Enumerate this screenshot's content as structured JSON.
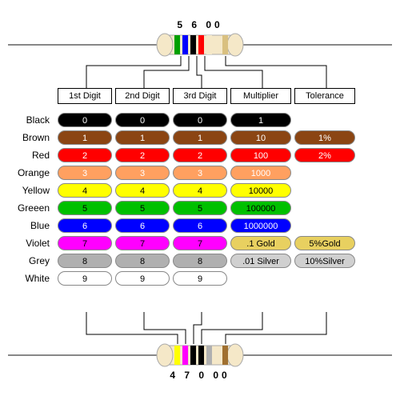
{
  "top_resistor": {
    "digits_label": "5 6 00",
    "bands": [
      "#00a000",
      "#0000ff",
      "#000000",
      "#ff0000",
      "#f5e8c8",
      "#d9c080"
    ]
  },
  "bottom_resistor": {
    "digits_label": "4 7 0 00",
    "bands": [
      "#ffff00",
      "#ff00ff",
      "#000000",
      "#000000",
      "#b0b0b0",
      "#a07030"
    ]
  },
  "headers": [
    "1st Digit",
    "2nd Digit",
    "3rd Digit",
    "Multiplier",
    "Tolerance"
  ],
  "rows": [
    {
      "label": "Black",
      "color": "#000000",
      "text": "#ffffff",
      "d": "0",
      "mult": "1",
      "tol": null
    },
    {
      "label": "Brown",
      "color": "#8b4513",
      "text": "#ffffff",
      "d": "1",
      "mult": "10",
      "tol": "1%"
    },
    {
      "label": "Red",
      "color": "#ff0000",
      "text": "#ffffff",
      "d": "2",
      "mult": "100",
      "tol": "2%"
    },
    {
      "label": "Orange",
      "color": "#ffa060",
      "text": "#ffffff",
      "d": "3",
      "mult": "1000",
      "tol": null
    },
    {
      "label": "Yellow",
      "color": "#ffff00",
      "text": "#000000",
      "d": "4",
      "mult": "10000",
      "tol": null
    },
    {
      "label": "Greeen",
      "color": "#00c000",
      "text": "#000000",
      "d": "5",
      "mult": "100000",
      "tol": null
    },
    {
      "label": "Blue",
      "color": "#0000ff",
      "text": "#ffffff",
      "d": "6",
      "mult": "1000000",
      "tol": null
    },
    {
      "label": "Violet",
      "color": "#ff00ff",
      "text": "#000000",
      "d": "7",
      "mult": null,
      "tol": null
    },
    {
      "label": "Grey",
      "color": "#b0b0b0",
      "text": "#000000",
      "d": "8",
      "mult": null,
      "tol": null
    },
    {
      "label": "White",
      "color": "#ffffff",
      "text": "#000000",
      "d": "9",
      "mult": null,
      "tol": null
    }
  ],
  "metal_rows": [
    {
      "label": "",
      "mult": ".1 Gold",
      "mult_bg": "#e8d060",
      "tol": "5%Gold",
      "tol_bg": "#e8d060"
    },
    {
      "label": "",
      "mult": ".01 Silver",
      "mult_bg": "#d0d0d0",
      "tol": "10%Silver",
      "tol_bg": "#d0d0d0"
    }
  ],
  "styling": {
    "pill_border_radius": 10,
    "background": "#ffffff",
    "body_color": "#f5e8c8",
    "lead_color": "#888888",
    "font_family": "Arial, sans-serif",
    "font_size_label": 12,
    "font_size_pill": 11
  }
}
